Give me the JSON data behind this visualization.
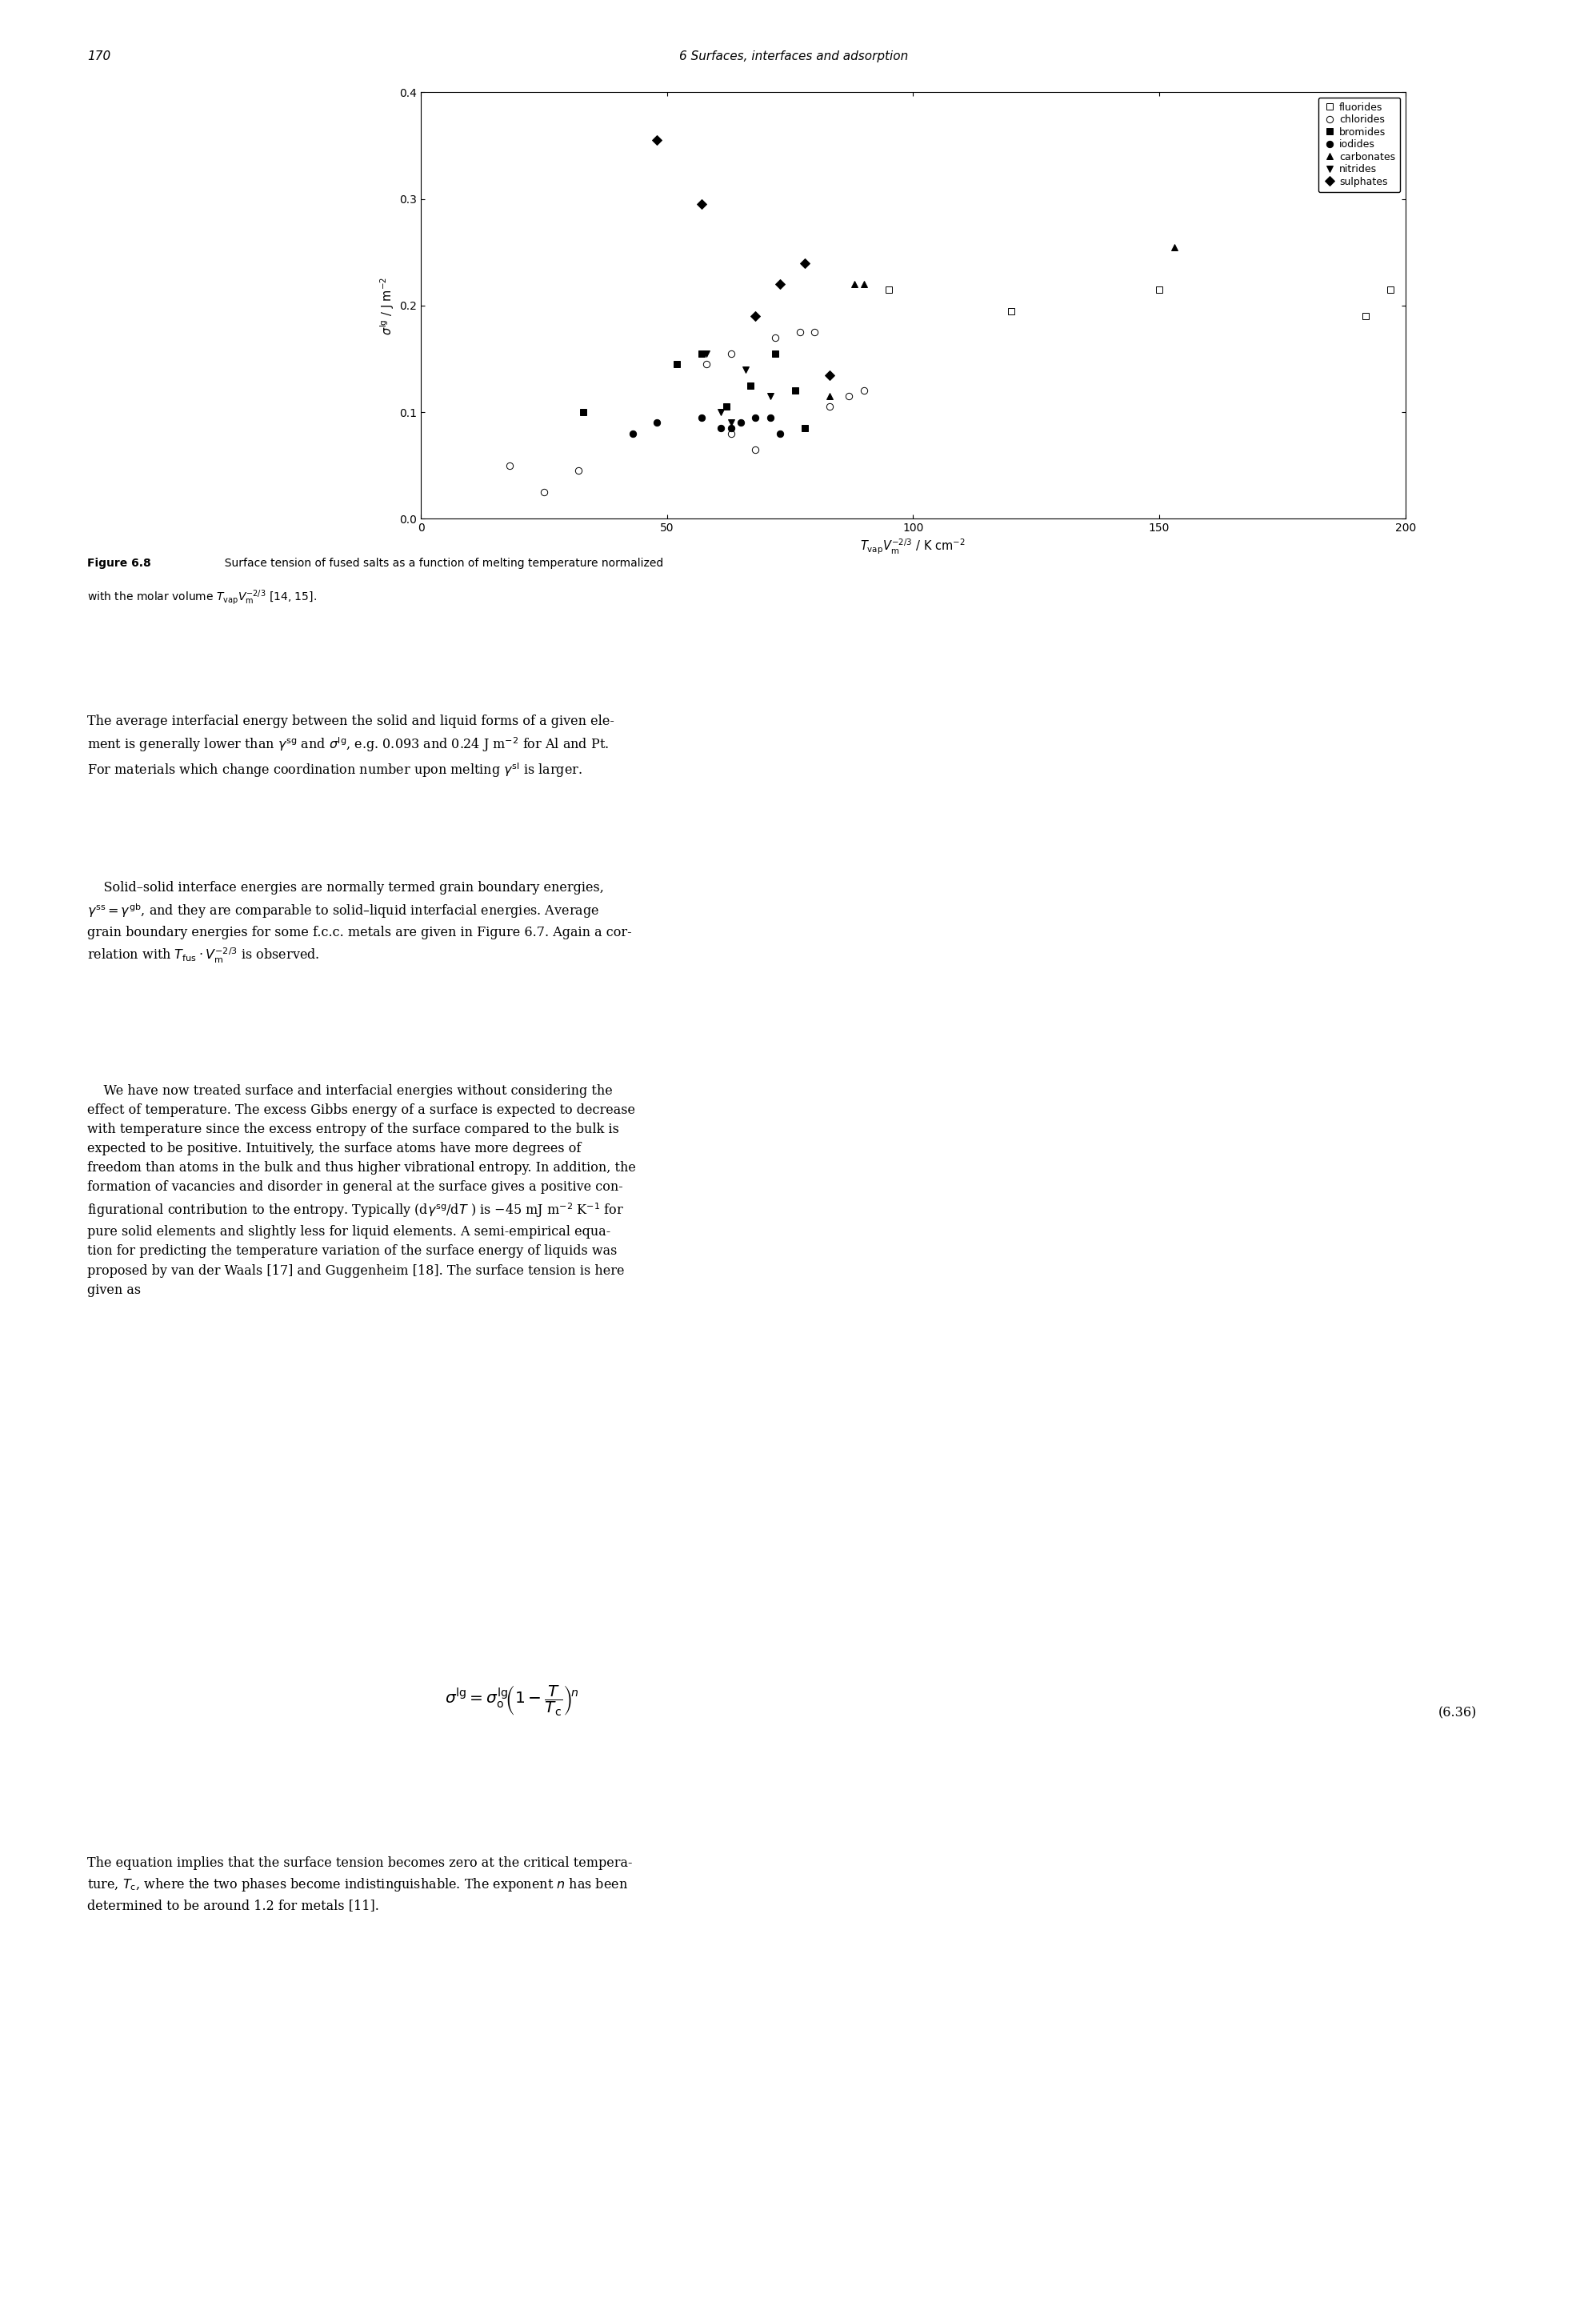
{
  "page_number": "170",
  "header": "6 Surfaces, interfaces and adsorption",
  "xlim": [
    0,
    200
  ],
  "ylim": [
    0.0,
    0.4
  ],
  "xticks": [
    0,
    50,
    100,
    150,
    200
  ],
  "yticks": [
    0.0,
    0.1,
    0.2,
    0.3,
    0.4
  ],
  "fluorides": {
    "x": [
      95,
      120,
      150,
      192,
      197
    ],
    "y": [
      0.215,
      0.195,
      0.215,
      0.19,
      0.215
    ]
  },
  "chlorides": {
    "x": [
      18,
      25,
      32,
      58,
      63,
      72,
      77,
      80,
      83,
      87,
      90,
      63,
      68
    ],
    "y": [
      0.05,
      0.025,
      0.045,
      0.145,
      0.155,
      0.17,
      0.175,
      0.175,
      0.105,
      0.115,
      0.12,
      0.08,
      0.065
    ]
  },
  "bromides": {
    "x": [
      33,
      52,
      57,
      62,
      67,
      72,
      76,
      78
    ],
    "y": [
      0.1,
      0.145,
      0.155,
      0.105,
      0.125,
      0.155,
      0.12,
      0.085
    ]
  },
  "iodides": {
    "x": [
      43,
      48,
      57,
      61,
      63,
      65,
      68,
      71,
      73
    ],
    "y": [
      0.08,
      0.09,
      0.095,
      0.085,
      0.085,
      0.09,
      0.095,
      0.095,
      0.08
    ]
  },
  "carbonates": {
    "x": [
      83,
      88,
      90,
      153
    ],
    "y": [
      0.115,
      0.22,
      0.22,
      0.255
    ]
  },
  "nitrides": {
    "x": [
      58,
      61,
      63,
      66,
      71
    ],
    "y": [
      0.155,
      0.1,
      0.09,
      0.14,
      0.115
    ]
  },
  "sulphates": {
    "x": [
      48,
      57,
      68,
      73,
      78,
      83
    ],
    "y": [
      0.355,
      0.295,
      0.19,
      0.22,
      0.24,
      0.135
    ]
  },
  "background_color": "white",
  "marker_size": 6,
  "linewidth": 0.7,
  "font_size": 10.5,
  "tick_fontsize": 10,
  "legend_fontsize": 9
}
